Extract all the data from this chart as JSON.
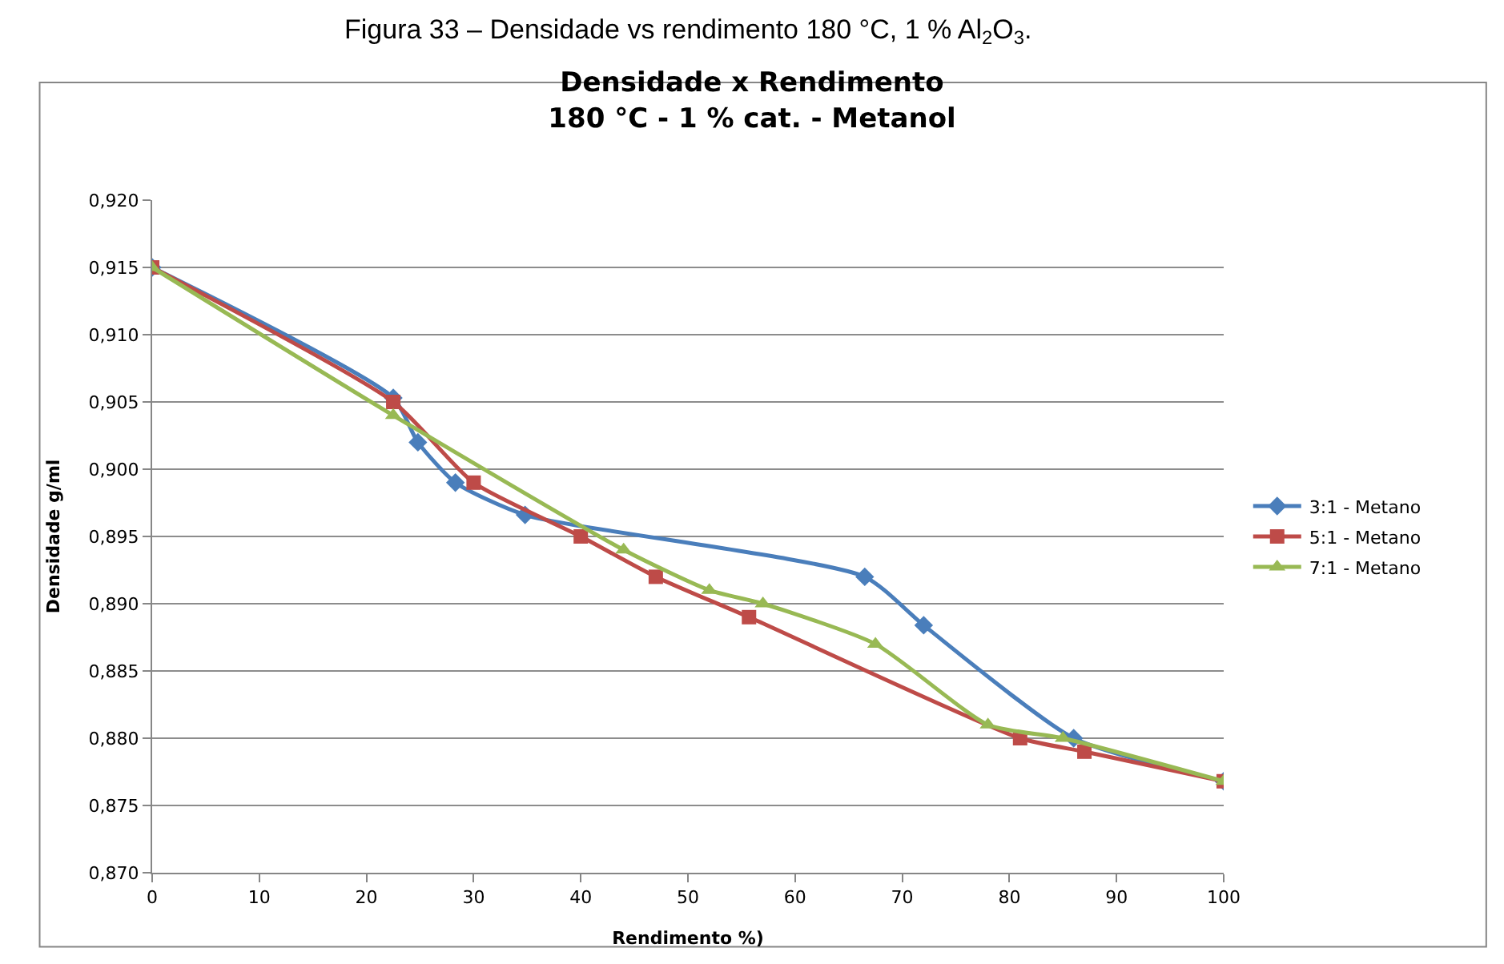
{
  "chart_data": {
    "type": "line",
    "title": "Densidade x Rendimento",
    "subtitle": "180 °C - 1 % cat. - Metanol",
    "xlabel": "Rendimento %)",
    "ylabel": "Densidade g/ml",
    "annotations": [
      "Figura 33 – Densidade vs rendimento 180 °C, 1 % Al$_{2}$O$_{3}$."
    ],
    "series": [
      {
        "name": "3:1 - Metano",
        "color": "#4a7ebb",
        "marker": "diamond",
        "x": [
          0,
          22.5,
          24.8,
          28.3,
          34.8,
          66.5,
          72,
          86,
          100
        ],
        "values": [
          0.915,
          0.9053,
          0.902,
          0.899,
          0.8966,
          0.892,
          0.8884,
          0.88,
          0.8768
        ]
      },
      {
        "name": "5:1 - Metano",
        "color": "#be4b48",
        "marker": "square",
        "x": [
          0,
          22.5,
          30,
          40,
          47,
          55.7,
          81,
          87,
          100
        ],
        "values": [
          0.915,
          0.905,
          0.899,
          0.895,
          0.892,
          0.889,
          0.88,
          0.879,
          0.8768
        ]
      },
      {
        "name": "7:1 - Metano",
        "color": "#98b954",
        "marker": "triangle",
        "x": [
          0,
          22.5,
          44,
          52,
          57,
          67.5,
          78,
          85,
          100
        ],
        "values": [
          0.915,
          0.904,
          0.894,
          0.891,
          0.89,
          0.887,
          0.881,
          0.88,
          0.8768
        ]
      }
    ],
    "xlim": [
      0,
      100
    ],
    "xticks": [
      0,
      10,
      20,
      30,
      40,
      50,
      60,
      70,
      80,
      90,
      100
    ],
    "ylim": [
      0.87,
      0.92
    ],
    "yticks": [
      {
        "value": 0.87,
        "label": "0,870"
      },
      {
        "value": 0.875,
        "label": "0,875"
      },
      {
        "value": 0.88,
        "label": "0,880"
      },
      {
        "value": 0.885,
        "label": "0,885"
      },
      {
        "value": 0.89,
        "label": "0,890"
      },
      {
        "value": 0.895,
        "label": "0,895"
      },
      {
        "value": 0.9,
        "label": "0,900"
      },
      {
        "value": 0.905,
        "label": "0,905"
      },
      {
        "value": 0.91,
        "label": "0,910"
      },
      {
        "value": 0.915,
        "label": "0,915"
      },
      {
        "value": 0.92,
        "label": "0,920"
      }
    ],
    "grid": "y",
    "legend": "right",
    "line_style": "solid"
  }
}
